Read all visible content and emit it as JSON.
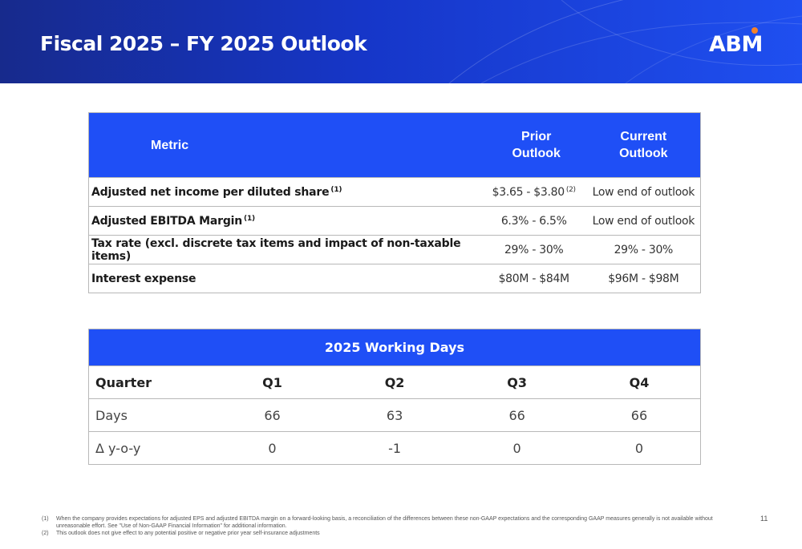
{
  "header": {
    "title": "Fiscal 2025 – FY 2025 Outlook",
    "logo_text": "ABM"
  },
  "colors": {
    "header_dark": "#172a8c",
    "header_light": "#1f4ff0",
    "table_header": "#1f4ff6",
    "logo_accent": "#f5822a"
  },
  "outlook_table": {
    "headers": {
      "metric": "Metric",
      "prior_line1": "Prior",
      "prior_line2": "Outlook",
      "current_line1": "Current",
      "current_line2": "Outlook"
    },
    "rows": [
      {
        "metric": "Adjusted net income per diluted share",
        "metric_note": "(1)",
        "prior": "$3.65 - $3.80",
        "prior_note": "(2)",
        "current": "Low end of outlook"
      },
      {
        "metric": "Adjusted EBITDA Margin",
        "metric_note": "(1)",
        "prior": "6.3% - 6.5%",
        "prior_note": "",
        "current": "Low end of outlook"
      },
      {
        "metric": "Tax rate (excl. discrete tax items and impact of non-taxable items)",
        "metric_note": "",
        "prior": "29% - 30%",
        "prior_note": "",
        "current": "29% - 30%"
      },
      {
        "metric": "Interest expense",
        "metric_note": "",
        "prior": "$80M - $84M",
        "prior_note": "",
        "current": "$96M - $98M"
      }
    ]
  },
  "working_days": {
    "title": "2025 Working Days",
    "columns": [
      "Quarter",
      "Q1",
      "Q2",
      "Q3",
      "Q4"
    ],
    "rows": [
      {
        "label": "Days",
        "values": [
          "66",
          "63",
          "66",
          "66"
        ]
      },
      {
        "label": "Δ y-o-y",
        "values": [
          "0",
          "-1",
          "0",
          "0"
        ]
      }
    ]
  },
  "footnotes": [
    {
      "num": "(1)",
      "text": "When the company provides expectations for adjusted EPS and adjusted EBITDA margin on a forward-looking basis, a reconciliation of the differences between these non-GAAP expectations and the corresponding GAAP measures generally is not available without unreasonable effort. See \"Use of Non-GAAP Financial Information\" for additional information."
    },
    {
      "num": "(2)",
      "text": "This outlook does not give effect to any potential positive or negative prior year self-insurance adjustments"
    }
  ],
  "page_number": "11"
}
